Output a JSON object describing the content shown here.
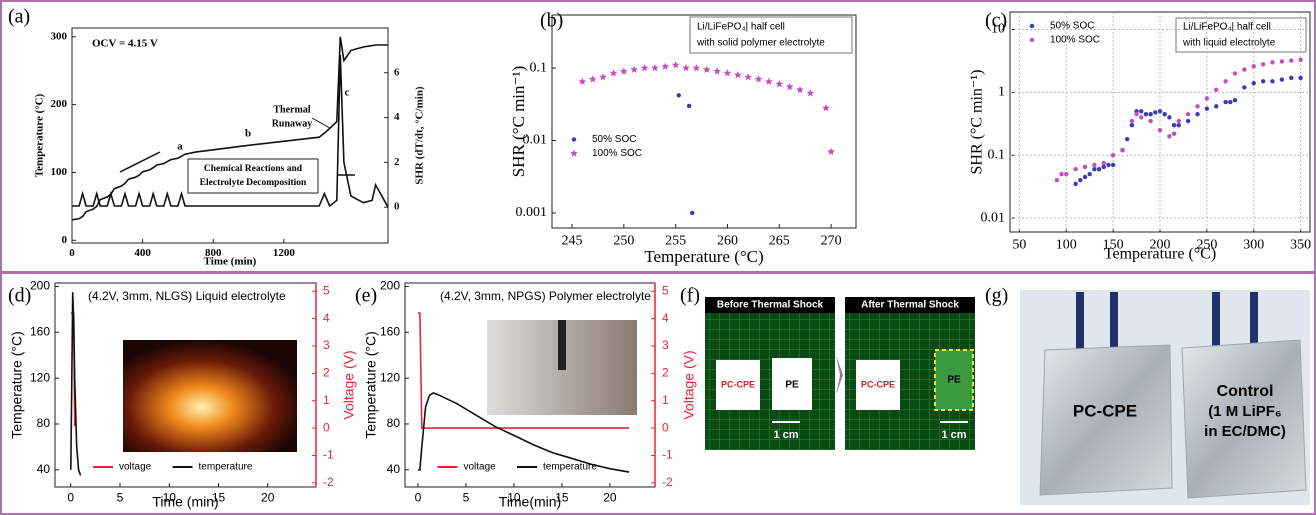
{
  "chart_data": [
    {
      "type": "line",
      "label": "(a)",
      "xlabel": "Time (min)",
      "ylabel": "Temperature (°C)",
      "y2label": "SHR (dT/dt, °C/min)",
      "xlim": [
        0,
        1790
      ],
      "xticks": [
        0,
        400,
        800,
        1200
      ],
      "ylim": [
        -4,
        313
      ],
      "yticks": [
        0,
        100,
        200,
        300
      ],
      "y2lim": [
        -1.6,
        8
      ],
      "y2ticks": [
        0,
        2,
        4,
        6
      ],
      "annotations": [
        "OCV = 4.15 V",
        "Thermal",
        "Runaway",
        "a",
        "b",
        "c",
        "Chemical Reactions and",
        "Electrolyte Decomposition"
      ],
      "x": [
        0,
        40,
        60,
        80,
        120,
        140,
        160,
        200,
        220,
        240,
        280,
        300,
        320,
        360,
        380,
        400,
        440,
        460,
        480,
        520,
        540,
        560,
        600,
        620,
        640,
        700,
        1000,
        1400,
        1430,
        1460,
        1500,
        1520,
        1540,
        1580,
        1650,
        1700,
        1720,
        1790
      ],
      "series": [
        {
          "color": "#111111",
          "values": [
            30,
            32,
            35,
            42,
            46,
            50,
            60,
            64,
            68,
            76,
            80,
            84,
            90,
            93,
            96,
            101,
            104,
            107,
            111,
            113,
            116,
            119,
            121,
            124,
            127,
            130,
            140,
            152,
            158,
            165,
            175,
            300,
            265,
            280,
            285,
            287,
            288,
            288
          ]
        },
        {
          "color": "#111111",
          "axis": "y2",
          "values": [
            0.05,
            0.05,
            0.6,
            0.05,
            0.05,
            0.6,
            0.05,
            0.05,
            0.6,
            0.05,
            0.05,
            0.6,
            0.05,
            0.05,
            0.6,
            0.05,
            0.05,
            0.6,
            0.05,
            0.05,
            0.6,
            0.05,
            0.05,
            0.6,
            0.05,
            0.05,
            0.05,
            0.05,
            0.6,
            0.05,
            0.3,
            6.8,
            2,
            0.5,
            0.2,
            0.3,
            1,
            0
          ]
        }
      ]
    },
    {
      "type": "scatter",
      "label": "(b)",
      "xlabel": "Temperature (°C)",
      "ylabel": "SHR (°C min⁻¹)",
      "ylog": true,
      "xlim": [
        243.07,
        272.4
      ],
      "xticks": [
        245,
        250,
        255,
        260,
        265,
        270
      ],
      "ylim": [
        0.00062,
        0.54
      ],
      "yticks": [
        0.001,
        0.01,
        0.1
      ],
      "annotations": [
        "Li/LiFePO₄| half cell",
        "with solid polymer electrolyte"
      ],
      "legend": "center left",
      "series": [
        {
          "name": "50% SOC",
          "color": "#3a3ab8",
          "marker": "circle",
          "x": [
            255.3,
            256.3,
            256.6
          ],
          "values": [
            0.042,
            0.03,
            0.001
          ]
        },
        {
          "name": "100% SOC",
          "color": "#c44dc4",
          "marker": "star",
          "x": [
            246,
            247,
            248,
            249,
            250,
            251,
            252,
            253,
            254,
            255,
            256,
            257,
            258,
            259,
            260,
            261,
            262,
            263,
            264,
            265,
            266,
            267,
            268,
            269.5,
            270
          ],
          "values": [
            0.065,
            0.07,
            0.075,
            0.085,
            0.09,
            0.095,
            0.1,
            0.1,
            0.105,
            0.11,
            0.1,
            0.1,
            0.095,
            0.09,
            0.085,
            0.08,
            0.075,
            0.07,
            0.065,
            0.06,
            0.055,
            0.05,
            0.045,
            0.028,
            0.007
          ]
        }
      ]
    },
    {
      "type": "scatter",
      "label": "(c)",
      "xlabel": "Temperature (°C)",
      "ylabel": "SHR (°C min⁻¹)",
      "ylog": true,
      "grid": true,
      "xlim": [
        40,
        360
      ],
      "xticks": [
        50,
        100,
        150,
        200,
        250,
        300,
        350
      ],
      "ylim": [
        0.006,
        19
      ],
      "yticks": [
        0.01,
        0.1,
        1,
        10
      ],
      "annotations": [
        "Li/LiFePO₄| half cell",
        "with liquid electrolyte"
      ],
      "legend": "upper left",
      "series": [
        {
          "name": "50% SOC",
          "color": "#3a3ab8",
          "marker": "circle",
          "x": [
            110,
            115,
            120,
            125,
            130,
            135,
            140,
            145,
            150,
            160,
            165,
            170,
            175,
            180,
            185,
            190,
            195,
            200,
            205,
            210,
            215,
            220,
            230,
            240,
            250,
            260,
            270,
            275,
            280,
            290,
            300,
            310,
            320,
            330,
            340,
            350
          ],
          "values": [
            0.035,
            0.04,
            0.045,
            0.05,
            0.06,
            0.06,
            0.065,
            0.07,
            0.07,
            0.12,
            0.18,
            0.3,
            0.5,
            0.5,
            0.45,
            0.45,
            0.48,
            0.5,
            0.45,
            0.4,
            0.3,
            0.3,
            0.35,
            0.45,
            0.55,
            0.6,
            0.7,
            0.7,
            0.75,
            1.2,
            1.4,
            1.5,
            1.5,
            1.6,
            1.7,
            1.7
          ]
        },
        {
          "name": "100% SOC",
          "color": "#c44dc4",
          "marker": "circle",
          "x": [
            90,
            95,
            100,
            110,
            120,
            130,
            140,
            150,
            160,
            170,
            175,
            180,
            190,
            200,
            210,
            215,
            220,
            230,
            240,
            250,
            260,
            270,
            280,
            290,
            300,
            310,
            320,
            330,
            340,
            350
          ],
          "values": [
            0.04,
            0.05,
            0.05,
            0.06,
            0.065,
            0.07,
            0.075,
            0.1,
            0.12,
            0.35,
            0.45,
            0.4,
            0.35,
            0.25,
            0.2,
            0.22,
            0.35,
            0.45,
            0.6,
            0.8,
            1.1,
            1.5,
            2,
            2.3,
            2.6,
            2.8,
            3,
            3.1,
            3.2,
            3.3
          ]
        }
      ]
    },
    {
      "type": "line",
      "label": "(d)",
      "xlabel": "Time (min)",
      "ylabel": "Temperature (°C)",
      "y2label": "Voltage (V)",
      "y2color": "#e8243c",
      "xlim": [
        -1.6,
        24.9
      ],
      "xticks": [
        0,
        5,
        10,
        15,
        20
      ],
      "ylim": [
        25,
        203
      ],
      "yticks": [
        40,
        80,
        120,
        160,
        200
      ],
      "y2lim": [
        -2.15,
        5.3
      ],
      "y2ticks": [
        -2,
        -1,
        0,
        1,
        2,
        3,
        4,
        5
      ],
      "annotations": [
        "(4.2V, 3mm, NLGS) Liquid electrolyte"
      ],
      "legend": "lower center",
      "x": [
        0,
        0.1,
        0.2,
        0.3,
        0.4,
        0.5,
        0.6,
        0.8,
        1.0
      ],
      "series": [
        {
          "name": "voltage",
          "color": "#e8243c",
          "axis": "y2",
          "values": [
            4.2,
            4.2,
            4.2,
            4.2,
            0.1,
            0.1,
            null,
            null,
            null
          ]
        },
        {
          "name": "temperature",
          "color": "#111111",
          "values": [
            40,
            110,
            195,
            170,
            120,
            90,
            60,
            40,
            35
          ]
        }
      ]
    },
    {
      "type": "line",
      "label": "(e)",
      "xlabel": "Time(min)",
      "ylabel": "Temperature (°C)",
      "y2label": "Voltage (V)",
      "y2color": "#e8243c",
      "xlim": [
        -1.35,
        24.7
      ],
      "xticks": [
        0,
        5,
        10,
        15,
        20
      ],
      "ylim": [
        25,
        203
      ],
      "yticks": [
        40,
        80,
        120,
        160,
        200
      ],
      "y2lim": [
        -2.15,
        5.3
      ],
      "y2ticks": [
        -2,
        -1,
        0,
        1,
        2,
        3,
        4,
        5
      ],
      "annotations": [
        "(4.2V, 3mm, NPGS) Polymer electrolyte"
      ],
      "legend": "lower center",
      "x": [
        0,
        0.2,
        0.4,
        0.8,
        1.2,
        1.6,
        2,
        3,
        4,
        6,
        8,
        10,
        12,
        14,
        16,
        18,
        20,
        22
      ],
      "series": [
        {
          "name": "voltage",
          "color": "#e8243c",
          "axis": "y2",
          "values": [
            4.2,
            4.2,
            0,
            0,
            0,
            0,
            0,
            0,
            0,
            0,
            0,
            0,
            0,
            0,
            0,
            0,
            0,
            0
          ]
        },
        {
          "name": "temperature",
          "color": "#111111",
          "values": [
            40,
            40,
            60,
            95,
            105,
            107,
            106,
            102,
            98,
            88,
            78,
            70,
            62,
            55,
            50,
            45,
            41,
            38
          ]
        }
      ]
    }
  ],
  "panels": {
    "f": {
      "label": "(f)",
      "before": "Before  Thermal Shock",
      "after": "After Thermal Shock",
      "left_samples": [
        "PC-CPE",
        "PE"
      ],
      "right_samples": [
        "PC-CPE",
        "PE"
      ],
      "scale_bars": [
        "1 cm",
        "1 cm"
      ]
    },
    "g": {
      "label": "(g)",
      "left": "PC-CPE",
      "right": [
        "Control",
        "(1 M LiPF₆",
        "in EC/DMC)"
      ]
    }
  }
}
